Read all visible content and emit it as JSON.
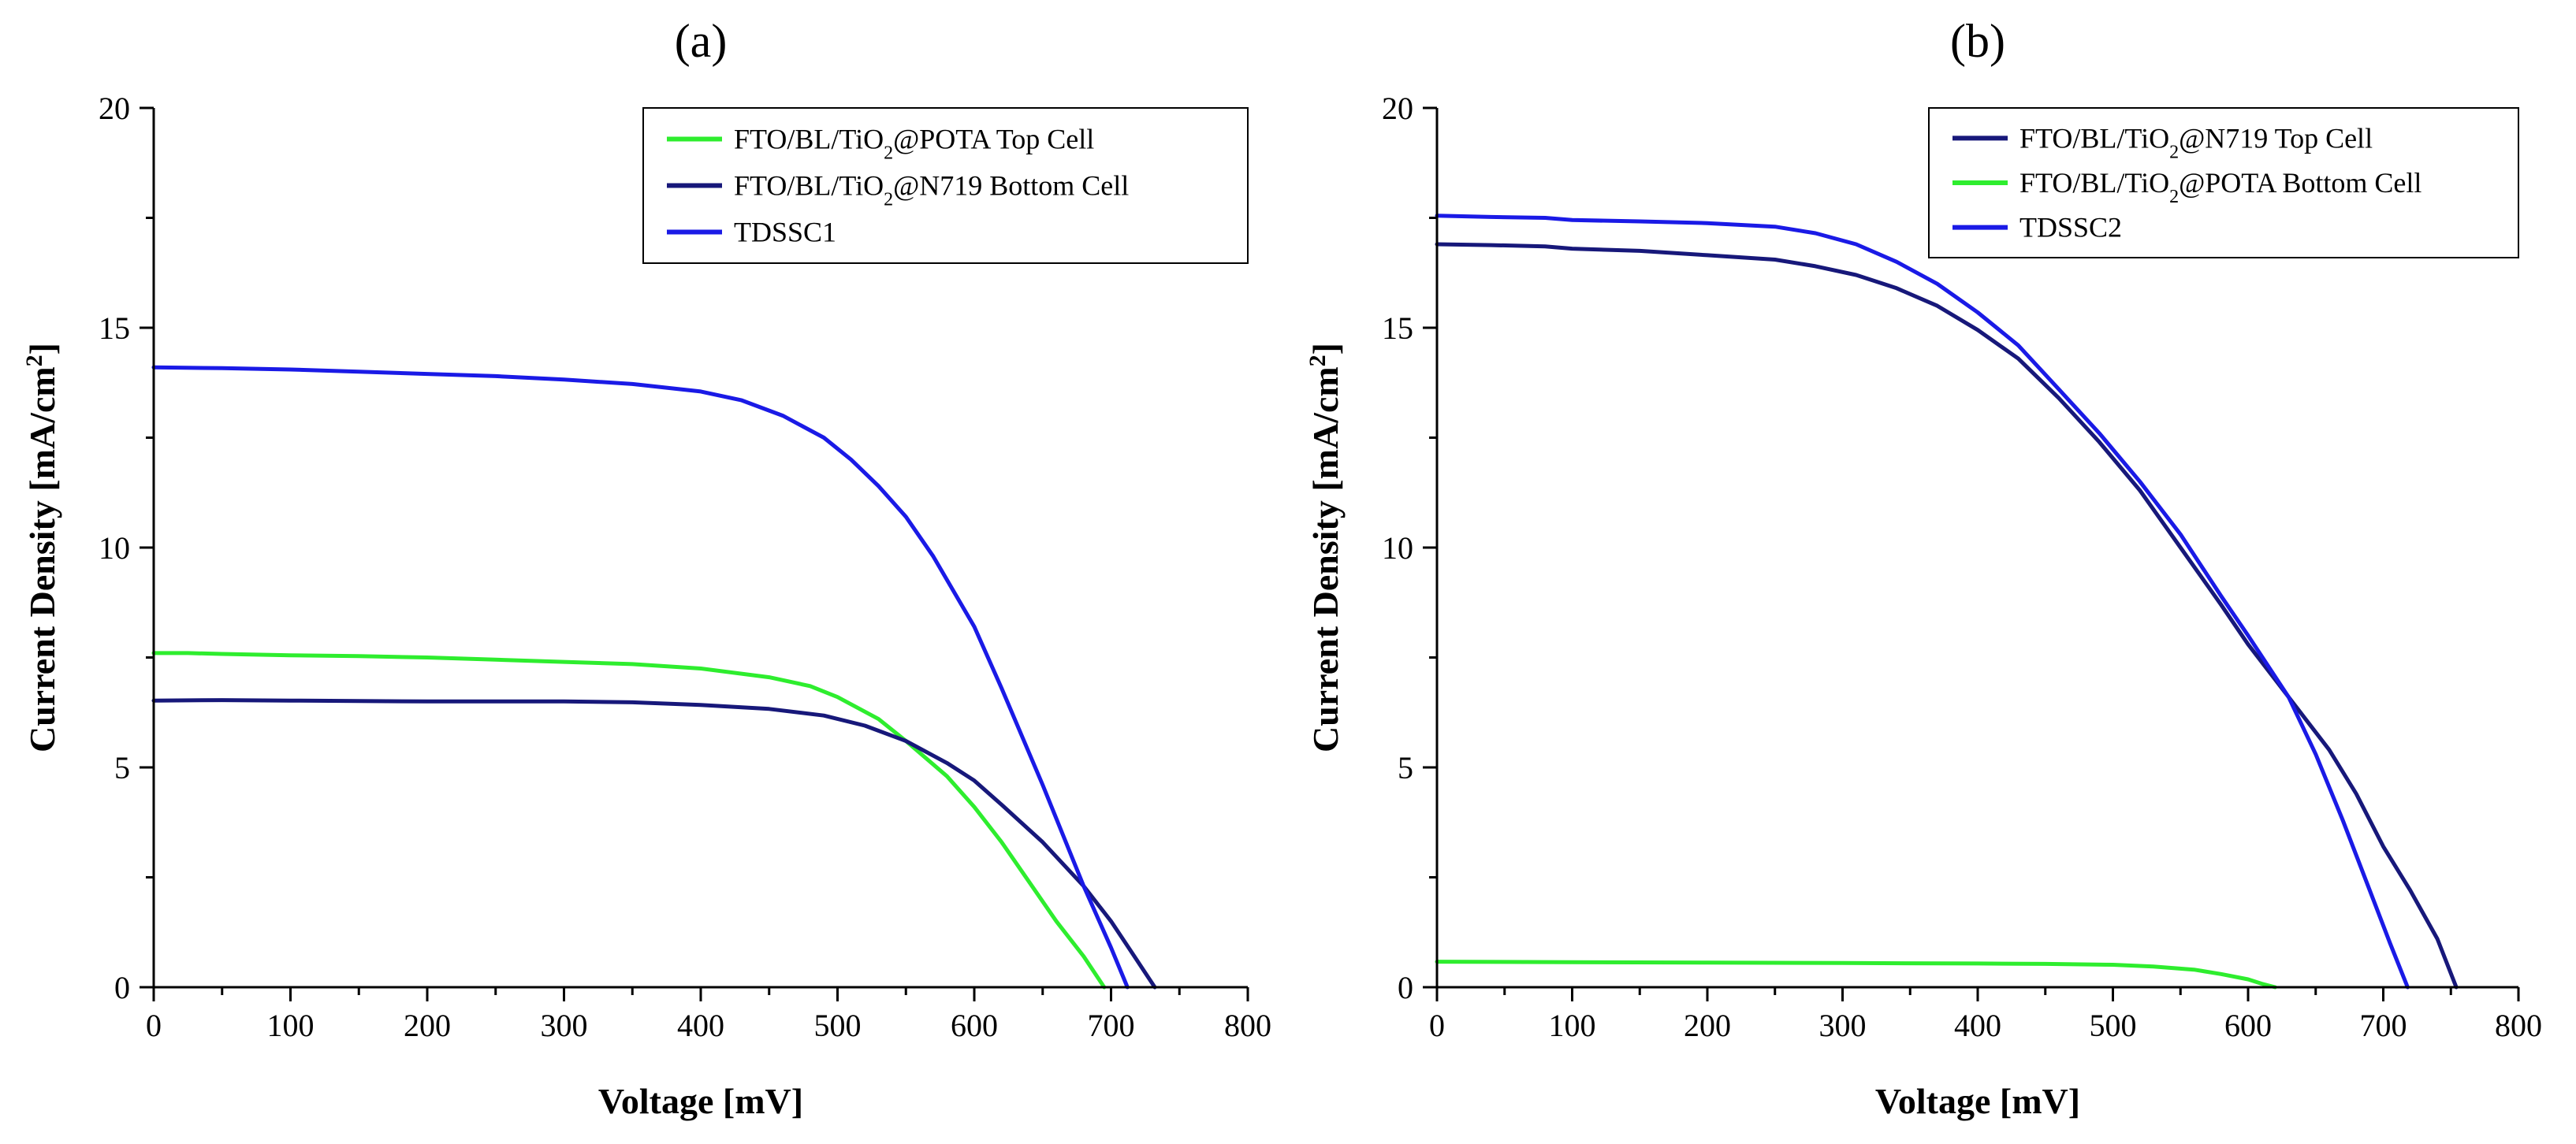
{
  "colors": {
    "green": "#2eed2e",
    "navy": "#17187a",
    "blue": "#1a1ae6",
    "axis": "#000000"
  },
  "chart_data": [
    {
      "type": "line",
      "panel_label": "(a)",
      "xlabel": "Voltage [mV]",
      "ylabel_prefix": "Current Density [mA/cm",
      "ylabel_sup": "2",
      "ylabel_suffix": "]",
      "xlim": [
        0,
        800
      ],
      "ylim": [
        0,
        20
      ],
      "xticks": [
        0,
        100,
        200,
        300,
        400,
        500,
        600,
        700,
        800
      ],
      "yticks": [
        0,
        5,
        10,
        15,
        20
      ],
      "legend_position": "top-right",
      "series": [
        {
          "name": "FTO/BL/TiO2@POTA Top Cell",
          "legend_pre": "FTO/BL/TiO",
          "legend_sub": "2",
          "legend_post": "@POTA Top Cell",
          "color": "green",
          "x": [
            0,
            25,
            50,
            100,
            150,
            200,
            250,
            300,
            350,
            400,
            450,
            480,
            500,
            530,
            550,
            580,
            600,
            620,
            640,
            660,
            680,
            695
          ],
          "y": [
            7.6,
            7.6,
            7.58,
            7.55,
            7.53,
            7.5,
            7.45,
            7.4,
            7.35,
            7.25,
            7.05,
            6.85,
            6.6,
            6.1,
            5.6,
            4.8,
            4.1,
            3.3,
            2.4,
            1.5,
            0.7,
            0
          ]
        },
        {
          "name": "FTO/BL/TiO2@N719 Bottom Cell",
          "legend_pre": "FTO/BL/TiO",
          "legend_sub": "2",
          "legend_post": "@N719 Bottom Cell",
          "color": "navy",
          "x": [
            0,
            50,
            100,
            150,
            200,
            250,
            300,
            350,
            400,
            450,
            490,
            520,
            550,
            580,
            600,
            620,
            650,
            680,
            700,
            715,
            732
          ],
          "y": [
            6.52,
            6.53,
            6.52,
            6.51,
            6.5,
            6.5,
            6.5,
            6.48,
            6.42,
            6.33,
            6.18,
            5.95,
            5.6,
            5.1,
            4.7,
            4.15,
            3.3,
            2.3,
            1.5,
            0.8,
            0
          ]
        },
        {
          "name": "TDSSC1",
          "legend_pre": "TDSSC1",
          "legend_sub": "",
          "legend_post": "",
          "color": "blue",
          "x": [
            0,
            50,
            100,
            150,
            200,
            250,
            300,
            350,
            400,
            430,
            460,
            490,
            510,
            530,
            550,
            570,
            600,
            620,
            650,
            680,
            700,
            712
          ],
          "y": [
            14.1,
            14.08,
            14.05,
            14.0,
            13.95,
            13.9,
            13.82,
            13.72,
            13.55,
            13.35,
            13.0,
            12.5,
            12.0,
            11.4,
            10.7,
            9.8,
            8.2,
            6.8,
            4.6,
            2.3,
            0.9,
            0
          ]
        }
      ]
    },
    {
      "type": "line",
      "panel_label": "(b)",
      "xlabel": "Voltage [mV]",
      "ylabel_prefix": "Current Density [mA/cm",
      "ylabel_sup": "2",
      "ylabel_suffix": "]",
      "xlim": [
        0,
        800
      ],
      "ylim": [
        0,
        20
      ],
      "xticks": [
        0,
        100,
        200,
        300,
        400,
        500,
        600,
        700,
        800
      ],
      "yticks": [
        0,
        5,
        10,
        15,
        20
      ],
      "legend_position": "top-right",
      "series": [
        {
          "name": "FTO/BL/TiO2@N719 Top Cell",
          "legend_pre": "FTO/BL/TiO",
          "legend_sub": "2",
          "legend_post": "@N719 Top Cell",
          "color": "navy",
          "x": [
            0,
            40,
            80,
            100,
            150,
            200,
            250,
            280,
            310,
            340,
            370,
            400,
            430,
            460,
            490,
            520,
            550,
            580,
            600,
            630,
            660,
            680,
            700,
            720,
            740,
            754
          ],
          "y": [
            16.9,
            16.88,
            16.85,
            16.8,
            16.75,
            16.65,
            16.55,
            16.4,
            16.2,
            15.9,
            15.5,
            14.95,
            14.3,
            13.4,
            12.4,
            11.3,
            10.0,
            8.7,
            7.8,
            6.6,
            5.4,
            4.4,
            3.2,
            2.2,
            1.1,
            0
          ]
        },
        {
          "name": "FTO/BL/TiO2@POTA Bottom Cell",
          "legend_pre": "FTO/BL/TiO",
          "legend_sub": "2",
          "legend_post": "@POTA Bottom Cell",
          "color": "green",
          "x": [
            0,
            100,
            200,
            300,
            400,
            450,
            500,
            530,
            560,
            580,
            600,
            610,
            620
          ],
          "y": [
            0.58,
            0.57,
            0.56,
            0.55,
            0.54,
            0.53,
            0.51,
            0.47,
            0.4,
            0.3,
            0.18,
            0.08,
            0
          ]
        },
        {
          "name": "TDSSC2",
          "legend_pre": "TDSSC2",
          "legend_sub": "",
          "legend_post": "",
          "color": "blue",
          "x": [
            0,
            40,
            80,
            100,
            150,
            200,
            250,
            280,
            310,
            340,
            370,
            400,
            430,
            460,
            490,
            520,
            550,
            580,
            600,
            630,
            650,
            670,
            690,
            705,
            718
          ],
          "y": [
            17.55,
            17.52,
            17.5,
            17.45,
            17.42,
            17.38,
            17.3,
            17.15,
            16.9,
            16.5,
            16.0,
            15.35,
            14.6,
            13.6,
            12.6,
            11.5,
            10.3,
            8.9,
            8.0,
            6.6,
            5.3,
            3.8,
            2.2,
            1.0,
            0
          ]
        }
      ]
    }
  ]
}
